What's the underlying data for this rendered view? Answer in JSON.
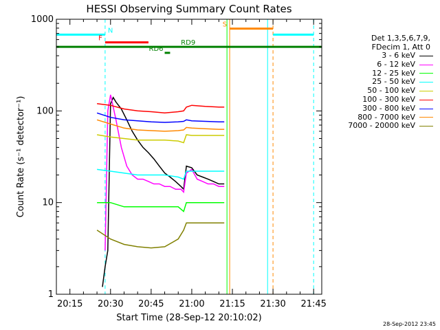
{
  "chart_data": {
    "type": "line",
    "title": "HESSI Observing Summary Count Rates",
    "xlabel": "Start Time (28-Sep-12 20:10:02)",
    "ylabel": "Count Rate (s⁻¹ detector⁻¹)",
    "y_scale": "log",
    "ylim": [
      1,
      1000
    ],
    "xlim": [
      "20:10",
      "21:48"
    ],
    "x_ticks": [
      "20:15",
      "20:30",
      "20:45",
      "21:00",
      "21:15",
      "21:30",
      "21:45"
    ],
    "y_ticks": [
      "1",
      "10",
      "100",
      "1000"
    ],
    "legend_header": [
      "Det 1,3,5,6,7,9,",
      "FDecim 1, Att 0"
    ],
    "series": [
      {
        "name": "3 - 6 keV",
        "color": "#000000",
        "points": [
          [
            "20:27",
            1.2
          ],
          [
            "20:28",
            2
          ],
          [
            "20:29",
            3
          ],
          [
            "20:30",
            120
          ],
          [
            "20:31",
            140
          ],
          [
            "20:32",
            125
          ],
          [
            "20:34",
            105
          ],
          [
            "20:36",
            80
          ],
          [
            "20:38",
            60
          ],
          [
            "20:40",
            48
          ],
          [
            "20:42",
            40
          ],
          [
            "20:44",
            35
          ],
          [
            "20:46",
            30
          ],
          [
            "20:48",
            25
          ],
          [
            "20:50",
            21
          ],
          [
            "20:52",
            19
          ],
          [
            "20:54",
            17
          ],
          [
            "20:56",
            15
          ],
          [
            "20:57",
            14
          ],
          [
            "20:58",
            25
          ],
          [
            "21:00",
            24
          ],
          [
            "21:02",
            20
          ],
          [
            "21:04",
            19
          ],
          [
            "21:06",
            18
          ],
          [
            "21:08",
            17
          ],
          [
            "21:10",
            16
          ],
          [
            "21:12",
            16
          ]
        ]
      },
      {
        "name": "6 - 12 keV",
        "color": "#ff00ff",
        "points": [
          [
            "20:28",
            3
          ],
          [
            "20:29",
            100
          ],
          [
            "20:30",
            150
          ],
          [
            "20:31",
            110
          ],
          [
            "20:32",
            80
          ],
          [
            "20:34",
            40
          ],
          [
            "20:36",
            25
          ],
          [
            "20:38",
            20
          ],
          [
            "20:40",
            18
          ],
          [
            "20:42",
            18
          ],
          [
            "20:44",
            17
          ],
          [
            "20:46",
            16
          ],
          [
            "20:48",
            16
          ],
          [
            "20:50",
            15
          ],
          [
            "20:52",
            15
          ],
          [
            "20:54",
            14
          ],
          [
            "20:56",
            14
          ],
          [
            "20:57",
            13
          ],
          [
            "20:58",
            21
          ],
          [
            "21:00",
            23
          ],
          [
            "21:02",
            18
          ],
          [
            "21:04",
            17
          ],
          [
            "21:06",
            16
          ],
          [
            "21:08",
            16
          ],
          [
            "21:10",
            15
          ],
          [
            "21:12",
            15
          ]
        ]
      },
      {
        "name": "12 - 25 keV",
        "color": "#00ff00",
        "points": [
          [
            "20:25",
            10
          ],
          [
            "20:30",
            10
          ],
          [
            "20:35",
            9
          ],
          [
            "20:40",
            9
          ],
          [
            "20:45",
            9
          ],
          [
            "20:50",
            9
          ],
          [
            "20:55",
            9
          ],
          [
            "20:57",
            8
          ],
          [
            "20:58",
            10
          ],
          [
            "21:00",
            10
          ],
          [
            "21:05",
            10
          ],
          [
            "21:10",
            10
          ],
          [
            "21:12",
            10
          ]
        ]
      },
      {
        "name": "25 - 50 keV",
        "color": "#00ffff",
        "points": [
          [
            "20:25",
            23
          ],
          [
            "20:30",
            22
          ],
          [
            "20:35",
            21
          ],
          [
            "20:40",
            20
          ],
          [
            "20:45",
            20
          ],
          [
            "20:50",
            20
          ],
          [
            "20:55",
            19
          ],
          [
            "20:57",
            18
          ],
          [
            "20:58",
            22
          ],
          [
            "21:00",
            22
          ],
          [
            "21:05",
            22
          ],
          [
            "21:10",
            22
          ],
          [
            "21:12",
            22
          ]
        ]
      },
      {
        "name": "50 - 100 keV",
        "color": "#cccc00",
        "points": [
          [
            "20:25",
            55
          ],
          [
            "20:30",
            52
          ],
          [
            "20:35",
            50
          ],
          [
            "20:40",
            48
          ],
          [
            "20:45",
            48
          ],
          [
            "20:50",
            48
          ],
          [
            "20:55",
            47
          ],
          [
            "20:57",
            45
          ],
          [
            "20:58",
            55
          ],
          [
            "21:00",
            54
          ],
          [
            "21:05",
            54
          ],
          [
            "21:10",
            54
          ],
          [
            "21:12",
            54
          ]
        ]
      },
      {
        "name": "100 - 300 keV",
        "color": "#ff0000",
        "points": [
          [
            "20:25",
            120
          ],
          [
            "20:30",
            115
          ],
          [
            "20:35",
            105
          ],
          [
            "20:40",
            100
          ],
          [
            "20:45",
            98
          ],
          [
            "20:50",
            95
          ],
          [
            "20:55",
            98
          ],
          [
            "20:57",
            100
          ],
          [
            "20:58",
            110
          ],
          [
            "21:00",
            115
          ],
          [
            "21:05",
            112
          ],
          [
            "21:10",
            110
          ],
          [
            "21:12",
            110
          ]
        ]
      },
      {
        "name": "300 - 800 keV",
        "color": "#0000ff",
        "points": [
          [
            "20:25",
            95
          ],
          [
            "20:30",
            85
          ],
          [
            "20:35",
            80
          ],
          [
            "20:40",
            78
          ],
          [
            "20:45",
            76
          ],
          [
            "20:50",
            75
          ],
          [
            "20:55",
            76
          ],
          [
            "20:57",
            77
          ],
          [
            "20:58",
            80
          ],
          [
            "21:00",
            78
          ],
          [
            "21:05",
            77
          ],
          [
            "21:10",
            76
          ],
          [
            "21:12",
            76
          ]
        ]
      },
      {
        "name": "800 - 7000 keV",
        "color": "#ff8800",
        "points": [
          [
            "20:25",
            80
          ],
          [
            "20:30",
            72
          ],
          [
            "20:35",
            65
          ],
          [
            "20:40",
            62
          ],
          [
            "20:45",
            61
          ],
          [
            "20:50",
            60
          ],
          [
            "20:55",
            61
          ],
          [
            "20:57",
            62
          ],
          [
            "20:58",
            66
          ],
          [
            "21:00",
            65
          ],
          [
            "21:05",
            64
          ],
          [
            "21:10",
            63
          ],
          [
            "21:12",
            63
          ]
        ]
      },
      {
        "name": "7000 - 20000 keV",
        "color": "#808000",
        "points": [
          [
            "20:25",
            5
          ],
          [
            "20:30",
            4
          ],
          [
            "20:35",
            3.5
          ],
          [
            "20:40",
            3.3
          ],
          [
            "20:45",
            3.2
          ],
          [
            "20:50",
            3.3
          ],
          [
            "20:55",
            4
          ],
          [
            "20:57",
            5
          ],
          [
            "20:58",
            6
          ],
          [
            "21:00",
            6
          ],
          [
            "21:05",
            6
          ],
          [
            "21:10",
            6
          ],
          [
            "21:12",
            6
          ]
        ]
      }
    ],
    "flag_lines": [
      {
        "label": "N",
        "color": "#00ffff",
        "y": 680,
        "segments": [
          [
            "20:10",
            "20:28"
          ],
          [
            "21:30",
            "21:45"
          ]
        ]
      },
      {
        "label": "F",
        "color": "#ff0000",
        "y": 560,
        "segments": [
          [
            "20:28",
            "20:44"
          ]
        ]
      },
      {
        "label": "S",
        "color": "#ff8800",
        "y": 790,
        "segments": [
          [
            "21:14",
            "21:30"
          ]
        ]
      },
      {
        "label": "RD9",
        "color": "#008000",
        "y": 500,
        "segments": [
          [
            "20:10",
            "21:48"
          ]
        ]
      },
      {
        "label": "RD6",
        "color": "#008000",
        "y": 430,
        "segments": [
          [
            "20:50",
            "20:52"
          ]
        ]
      }
    ],
    "vertical_lines": [
      {
        "x": "20:10",
        "color": "#00ffff",
        "style": "solid"
      },
      {
        "x": "20:28",
        "color": "#00ffff",
        "style": "dashed"
      },
      {
        "x": "21:13",
        "color": "#00ff00",
        "style": "solid"
      },
      {
        "x": "21:14",
        "color": "#ff8800",
        "style": "solid"
      },
      {
        "x": "21:28",
        "color": "#00ffff",
        "style": "solid"
      },
      {
        "x": "21:30",
        "color": "#ff8800",
        "style": "dashed"
      },
      {
        "x": "21:45",
        "color": "#00ffff",
        "style": "dashed"
      }
    ]
  },
  "footer": {
    "timestamp": "28-Sep-2012 23:45"
  }
}
